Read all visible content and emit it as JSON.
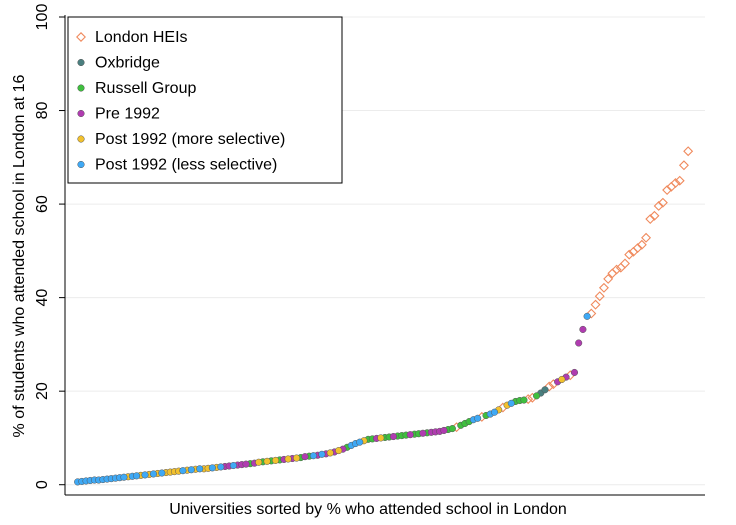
{
  "chart_data": {
    "type": "scatter",
    "xlabel": "Universities sorted by % who attended school in London",
    "ylabel": "% of students who attended school in London at 16",
    "xlim": [
      -2,
      150
    ],
    "ylim": [
      -2.2,
      100
    ],
    "yticks": [
      0,
      20,
      40,
      60,
      80,
      100
    ],
    "grid": true,
    "legend": "top-left",
    "series": [
      {
        "name": "London HEIs",
        "color": "#f08a5d",
        "marker": "diamond",
        "x": [
          91,
          97,
          102,
          108,
          109,
          113,
          114,
          118,
          123,
          124,
          125,
          126,
          127,
          128,
          129,
          130,
          131,
          132,
          133,
          134,
          135,
          136,
          137,
          138,
          139,
          140,
          141,
          142,
          143,
          144,
          145,
          146
        ],
        "values": [
          12.3,
          14.5,
          16.5,
          18.3,
          18.6,
          21.0,
          21.5,
          23.4,
          36.6,
          38.5,
          40.3,
          42.1,
          44.0,
          45.2,
          46.0,
          46.4,
          47.3,
          49.2,
          49.8,
          50.6,
          51.3,
          52.8,
          56.8,
          57.5,
          59.6,
          60.3,
          63.0,
          63.7,
          64.5,
          65.0,
          68.3,
          71.3
        ]
      },
      {
        "name": "Oxbridge",
        "color": "#4a7f7f",
        "marker": "circle",
        "x": [
          111,
          112
        ],
        "values": [
          19.6,
          20.3
        ]
      },
      {
        "name": "Russell Group",
        "color": "#3fbf3f",
        "marker": "circle",
        "x": [
          42,
          45,
          47,
          49,
          54,
          56,
          65,
          70,
          71,
          74,
          75,
          77,
          78,
          79,
          81,
          82,
          84,
          89,
          90,
          92,
          93,
          94,
          98,
          105,
          106,
          107,
          110
        ],
        "values": [
          4.5,
          4.9,
          5.1,
          5.3,
          5.8,
          6.1,
          8.0,
          9.7,
          9.8,
          10.1,
          10.2,
          10.4,
          10.5,
          10.6,
          10.8,
          10.9,
          11.1,
          11.8,
          12.0,
          12.7,
          13.1,
          13.5,
          14.8,
          17.8,
          18.0,
          18.1,
          19.0
        ]
      },
      {
        "name": "Pre 1992",
        "color": "#b03cb0",
        "marker": "circle",
        "x": [
          36,
          37,
          39,
          40,
          41,
          43,
          50,
          52,
          55,
          58,
          60,
          62,
          64,
          72,
          76,
          80,
          83,
          85,
          86,
          87,
          88,
          115,
          117,
          119,
          120,
          121
        ],
        "values": [
          3.9,
          4.0,
          4.2,
          4.3,
          4.4,
          4.6,
          5.4,
          5.6,
          6.0,
          6.3,
          6.6,
          7.0,
          7.6,
          9.9,
          10.3,
          10.7,
          11.0,
          11.2,
          11.3,
          11.4,
          11.6,
          22.0,
          23.0,
          24.0,
          30.3,
          33.2
        ]
      },
      {
        "name": "Post 1992 (more selective)",
        "color": "#f2c12e",
        "marker": "circle",
        "x": [
          13,
          16,
          18,
          20,
          22,
          23,
          24,
          25,
          27,
          29,
          31,
          32,
          34,
          44,
          46,
          48,
          51,
          53,
          61,
          63,
          69,
          73,
          101,
          103,
          116
        ],
        "values": [
          1.7,
          2.0,
          2.2,
          2.4,
          2.6,
          2.7,
          2.8,
          2.9,
          3.1,
          3.3,
          3.4,
          3.5,
          3.7,
          4.8,
          5.0,
          5.2,
          5.5,
          5.7,
          6.8,
          7.3,
          9.4,
          10.0,
          16.0,
          17.0,
          22.5
        ]
      },
      {
        "name": "Post 1992 (less selective)",
        "color": "#3fa9f5",
        "marker": "circle",
        "x": [
          1,
          2,
          3,
          4,
          5,
          6,
          7,
          8,
          9,
          10,
          11,
          12,
          14,
          15,
          17,
          19,
          21,
          26,
          28,
          30,
          33,
          35,
          38,
          57,
          59,
          66,
          67,
          68,
          95,
          96,
          99,
          100,
          104,
          122
        ],
        "values": [
          0.6,
          0.7,
          0.8,
          0.9,
          1.0,
          1.0,
          1.1,
          1.2,
          1.3,
          1.4,
          1.5,
          1.6,
          1.8,
          1.9,
          2.1,
          2.3,
          2.5,
          3.0,
          3.2,
          3.4,
          3.6,
          3.8,
          4.1,
          6.2,
          6.5,
          8.4,
          8.8,
          9.1,
          13.9,
          14.2,
          15.1,
          15.5,
          17.4,
          36.0
        ]
      }
    ]
  }
}
